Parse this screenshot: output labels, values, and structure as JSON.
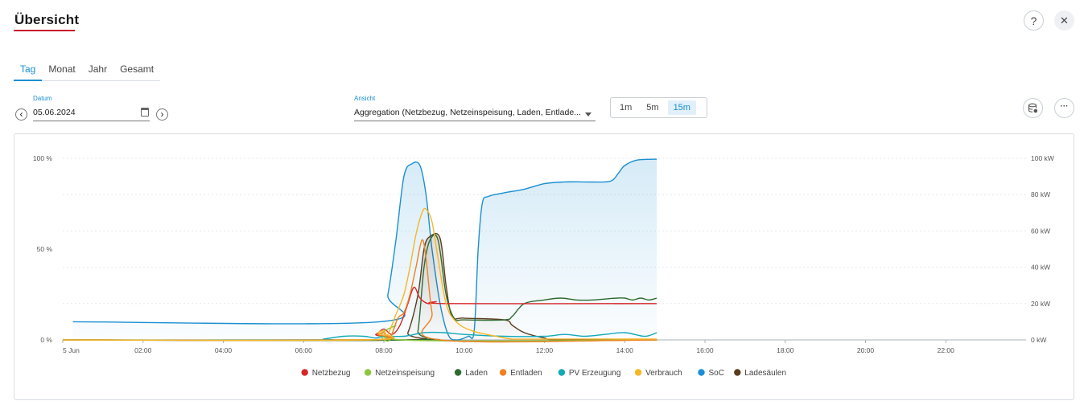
{
  "header": {
    "title": "Übersicht"
  },
  "tabs": [
    {
      "label": "Tag",
      "active": true
    },
    {
      "label": "Monat",
      "active": false
    },
    {
      "label": "Jahr",
      "active": false
    },
    {
      "label": "Gesamt",
      "active": false
    }
  ],
  "date_field": {
    "label": "Datum",
    "value": "05.06.2024"
  },
  "view_field": {
    "label": "Ansicht",
    "value": "Aggregation (Netzbezug, Netzeinspeisung, Laden, Entlade..."
  },
  "intervals": [
    {
      "label": "1m",
      "active": false
    },
    {
      "label": "5m",
      "active": false
    },
    {
      "label": "15m",
      "active": true
    }
  ],
  "icons": {
    "help": "help-icon",
    "close": "close-icon",
    "database": "database-icon",
    "more": "more-icon",
    "help_glyph": "?",
    "close_glyph": "✕",
    "more_glyph": "···",
    "prev_glyph": "‹",
    "next_glyph": "›"
  },
  "chart_data": {
    "type": "line",
    "x_tick_labels": [
      "5 Jun",
      "02:00",
      "04:00",
      "06:00",
      "08:00",
      "10:00",
      "12:00",
      "14:00",
      "16:00",
      "18:00",
      "20:00",
      "22:00"
    ],
    "x_range_hours": [
      0,
      24
    ],
    "y_left": {
      "ticks": [
        "0 %",
        "50 %",
        "100 %"
      ],
      "range": [
        0,
        100
      ]
    },
    "y_right": {
      "ticks": [
        "0 kW",
        "20 kW",
        "40 kW",
        "60 kW",
        "80 kW",
        "100 kW"
      ],
      "range": [
        0,
        100
      ]
    },
    "legend_position": "bottom",
    "series": [
      {
        "name": "Netzbezug",
        "color": "#d62728",
        "axis": "right",
        "points": [
          [
            0,
            0
          ],
          [
            7.5,
            0
          ],
          [
            7.8,
            3
          ],
          [
            8.0,
            6
          ],
          [
            8.2,
            3
          ],
          [
            8.4,
            8
          ],
          [
            8.6,
            20
          ],
          [
            8.75,
            29
          ],
          [
            8.9,
            23
          ],
          [
            9.1,
            20
          ],
          [
            9.3,
            21
          ],
          [
            9.6,
            20
          ],
          [
            14.8,
            20
          ]
        ]
      },
      {
        "name": "Netzeinspeisung",
        "color": "#8cc63f",
        "axis": "right",
        "points": [
          [
            0,
            0
          ],
          [
            7.6,
            0
          ],
          [
            7.9,
            2
          ],
          [
            8.0,
            0
          ],
          [
            8.15,
            0
          ],
          [
            8.3,
            8
          ],
          [
            8.45,
            0
          ],
          [
            14.8,
            0
          ]
        ]
      },
      {
        "name": "Laden",
        "color": "#2e6b30",
        "axis": "right",
        "points": [
          [
            0,
            0
          ],
          [
            8.7,
            0
          ],
          [
            8.85,
            5
          ],
          [
            9.0,
            40
          ],
          [
            9.15,
            55
          ],
          [
            9.35,
            55
          ],
          [
            9.55,
            25
          ],
          [
            9.75,
            12
          ],
          [
            10.0,
            11
          ],
          [
            11.0,
            11
          ],
          [
            11.2,
            13
          ],
          [
            11.5,
            20
          ],
          [
            12.0,
            22
          ],
          [
            12.4,
            23
          ],
          [
            12.8,
            22
          ],
          [
            13.2,
            22
          ],
          [
            13.8,
            23
          ],
          [
            14.0,
            23
          ],
          [
            14.2,
            22
          ],
          [
            14.4,
            23
          ],
          [
            14.6,
            22
          ],
          [
            14.8,
            23
          ]
        ]
      },
      {
        "name": "Entladen",
        "color": "#f08020",
        "axis": "right",
        "points": [
          [
            0,
            0
          ],
          [
            7.6,
            0
          ],
          [
            7.85,
            3
          ],
          [
            8.0,
            4
          ],
          [
            8.15,
            1
          ],
          [
            8.35,
            12
          ],
          [
            8.5,
            15
          ],
          [
            8.65,
            25
          ],
          [
            8.8,
            40
          ],
          [
            8.95,
            55
          ],
          [
            9.05,
            45
          ],
          [
            9.2,
            15
          ],
          [
            9.4,
            0
          ],
          [
            14.8,
            0
          ]
        ]
      },
      {
        "name": "PV Erzeugung",
        "color": "#13a8b8",
        "axis": "right",
        "points": [
          [
            0,
            0
          ],
          [
            6.2,
            0
          ],
          [
            6.5,
            0.5
          ],
          [
            7.0,
            2
          ],
          [
            7.5,
            2
          ],
          [
            7.8,
            1
          ],
          [
            8.0,
            2
          ],
          [
            8.5,
            2
          ],
          [
            9.0,
            4
          ],
          [
            9.5,
            4
          ],
          [
            10.0,
            3
          ],
          [
            11.0,
            2
          ],
          [
            12.0,
            2
          ],
          [
            12.5,
            3
          ],
          [
            13.0,
            2
          ],
          [
            13.5,
            3
          ],
          [
            14.0,
            4
          ],
          [
            14.5,
            2
          ],
          [
            14.8,
            4
          ]
        ]
      },
      {
        "name": "Verbrauch",
        "color": "#f5b728",
        "axis": "right",
        "points": [
          [
            0,
            0
          ],
          [
            7.6,
            0
          ],
          [
            7.85,
            4
          ],
          [
            8.0,
            5
          ],
          [
            8.1,
            3
          ],
          [
            8.3,
            14
          ],
          [
            8.5,
            25
          ],
          [
            8.65,
            40
          ],
          [
            8.8,
            58
          ],
          [
            8.95,
            70
          ],
          [
            9.05,
            72
          ],
          [
            9.2,
            65
          ],
          [
            9.35,
            45
          ],
          [
            9.55,
            20
          ],
          [
            9.8,
            10
          ],
          [
            10.2,
            5
          ],
          [
            10.8,
            2
          ],
          [
            11.2,
            0.5
          ],
          [
            12.0,
            0.5
          ],
          [
            13.0,
            0.5
          ],
          [
            14.8,
            0.5
          ]
        ]
      },
      {
        "name": "SoC",
        "color": "#1a8fd3",
        "axis": "left",
        "fill": true,
        "points": [
          [
            0.25,
            10
          ],
          [
            7.9,
            10
          ],
          [
            8.1,
            25
          ],
          [
            8.3,
            55
          ],
          [
            8.5,
            90
          ],
          [
            8.7,
            97
          ],
          [
            8.9,
            96
          ],
          [
            9.05,
            80
          ],
          [
            9.2,
            50
          ],
          [
            9.4,
            20
          ],
          [
            9.6,
            3
          ],
          [
            9.8,
            0
          ],
          [
            10.1,
            2
          ],
          [
            10.25,
            5
          ],
          [
            10.35,
            50
          ],
          [
            10.45,
            75
          ],
          [
            10.6,
            79
          ],
          [
            11.0,
            81
          ],
          [
            11.5,
            83
          ],
          [
            12.0,
            86
          ],
          [
            12.5,
            87
          ],
          [
            13.0,
            87
          ],
          [
            13.5,
            87
          ],
          [
            13.7,
            88
          ],
          [
            13.85,
            92
          ],
          [
            14.0,
            96
          ],
          [
            14.3,
            99
          ],
          [
            14.8,
            99.5
          ]
        ]
      },
      {
        "name": "Ladesäulen",
        "color": "#5a3d1f",
        "axis": "right",
        "fill": true,
        "points": [
          [
            0,
            0
          ],
          [
            8.4,
            0
          ],
          [
            8.6,
            4
          ],
          [
            8.85,
            25
          ],
          [
            9.0,
            50
          ],
          [
            9.15,
            57
          ],
          [
            9.4,
            56
          ],
          [
            9.55,
            30
          ],
          [
            9.7,
            13
          ],
          [
            10.0,
            12
          ],
          [
            11.0,
            11
          ],
          [
            11.2,
            8
          ],
          [
            11.5,
            4
          ],
          [
            12.0,
            1
          ],
          [
            12.4,
            0
          ],
          [
            14.8,
            0
          ]
        ]
      }
    ]
  }
}
